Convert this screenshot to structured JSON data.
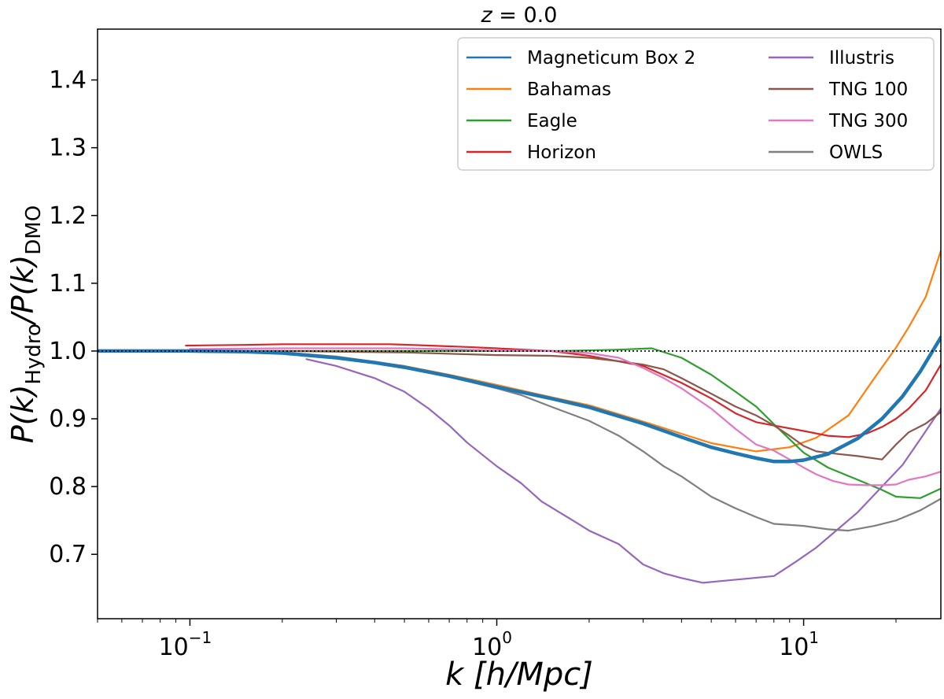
{
  "chart_data": {
    "type": "line",
    "title": "z = 0.0",
    "xlabel": "k [h/Mpc]",
    "ylabel": "P(k)_Hydro/P(k)_DMO",
    "xscale": "log",
    "xlim": [
      0.05,
      28
    ],
    "ylim": [
      0.605,
      1.475
    ],
    "grid": false,
    "legend": {
      "placement": "top-right",
      "columns": 2
    },
    "reference_line": {
      "y": 1.0,
      "style": "dotted",
      "color": "#000000"
    },
    "x_ticks": [
      {
        "value": 0.1,
        "base": "10",
        "exp": "−1"
      },
      {
        "value": 1,
        "base": "10",
        "exp": "0"
      },
      {
        "value": 10,
        "base": "10",
        "exp": "1"
      }
    ],
    "y_ticks": [
      {
        "value": 0.7,
        "label": "0.7"
      },
      {
        "value": 0.8,
        "label": "0.8"
      },
      {
        "value": 0.9,
        "label": "0.9"
      },
      {
        "value": 1.0,
        "label": "1.0"
      },
      {
        "value": 1.1,
        "label": "1.1"
      },
      {
        "value": 1.2,
        "label": "1.2"
      },
      {
        "value": 1.3,
        "label": "1.3"
      },
      {
        "value": 1.4,
        "label": "1.4"
      }
    ],
    "series": [
      {
        "name": "Magneticum Box 2",
        "color": "#1f77b4",
        "width": 4.5,
        "points": [
          [
            0.05,
            1.0
          ],
          [
            0.1,
            1.0
          ],
          [
            0.15,
            0.999
          ],
          [
            0.2,
            0.997
          ],
          [
            0.3,
            0.99
          ],
          [
            0.4,
            0.983
          ],
          [
            0.5,
            0.976
          ],
          [
            0.7,
            0.963
          ],
          [
            1.0,
            0.947
          ],
          [
            1.5,
            0.93
          ],
          [
            2.0,
            0.917
          ],
          [
            3.0,
            0.893
          ],
          [
            4.0,
            0.873
          ],
          [
            5.0,
            0.858
          ],
          [
            6.0,
            0.849
          ],
          [
            7.0,
            0.842
          ],
          [
            8.0,
            0.837
          ],
          [
            9.0,
            0.837
          ],
          [
            10.0,
            0.839
          ],
          [
            12.0,
            0.848
          ],
          [
            15.0,
            0.871
          ],
          [
            18.0,
            0.9
          ],
          [
            21.0,
            0.933
          ],
          [
            24.0,
            0.97
          ],
          [
            28.0,
            1.02
          ]
        ]
      },
      {
        "name": "Bahamas",
        "color": "#ff7f0e",
        "width": 2.2,
        "points": [
          [
            0.1,
            1.0
          ],
          [
            0.15,
            1.0
          ],
          [
            0.2,
            0.998
          ],
          [
            0.3,
            0.992
          ],
          [
            0.5,
            0.978
          ],
          [
            0.7,
            0.965
          ],
          [
            1.0,
            0.95
          ],
          [
            1.5,
            0.932
          ],
          [
            2.0,
            0.92
          ],
          [
            3.0,
            0.896
          ],
          [
            4.0,
            0.878
          ],
          [
            5.0,
            0.864
          ],
          [
            7.0,
            0.852
          ],
          [
            9.0,
            0.858
          ],
          [
            11.0,
            0.872
          ],
          [
            14.0,
            0.905
          ],
          [
            17.0,
            0.96
          ],
          [
            20.0,
            1.005
          ],
          [
            22.0,
            1.035
          ],
          [
            25.0,
            1.08
          ],
          [
            28.0,
            1.148
          ]
        ]
      },
      {
        "name": "Eagle",
        "color": "#2ca02c",
        "width": 2.2,
        "points": [
          [
            0.1,
            1.0
          ],
          [
            0.3,
            1.0
          ],
          [
            0.5,
            1.0
          ],
          [
            0.8,
            1.0
          ],
          [
            1.2,
            1.0
          ],
          [
            1.6,
            1.0
          ],
          [
            2.0,
            1.001
          ],
          [
            2.5,
            1.002
          ],
          [
            3.2,
            1.004
          ],
          [
            4.0,
            0.99
          ],
          [
            5.0,
            0.965
          ],
          [
            6.0,
            0.94
          ],
          [
            7.0,
            0.918
          ],
          [
            8.0,
            0.892
          ],
          [
            9.0,
            0.87
          ],
          [
            10.0,
            0.85
          ],
          [
            12.0,
            0.828
          ],
          [
            15.0,
            0.81
          ],
          [
            18.0,
            0.795
          ],
          [
            20.0,
            0.785
          ],
          [
            24.0,
            0.783
          ],
          [
            28.0,
            0.797
          ]
        ]
      },
      {
        "name": "Horizon",
        "color": "#d62728",
        "width": 2.2,
        "points": [
          [
            0.097,
            1.008
          ],
          [
            0.15,
            1.009
          ],
          [
            0.2,
            1.01
          ],
          [
            0.3,
            1.01
          ],
          [
            0.45,
            1.01
          ],
          [
            0.6,
            1.008
          ],
          [
            0.8,
            1.006
          ],
          [
            1.0,
            1.004
          ],
          [
            1.5,
            1.0
          ],
          [
            2.0,
            0.993
          ],
          [
            3.0,
            0.978
          ],
          [
            4.0,
            0.953
          ],
          [
            5.0,
            0.93
          ],
          [
            6.0,
            0.908
          ],
          [
            7.0,
            0.895
          ],
          [
            8.0,
            0.89
          ],
          [
            10.0,
            0.882
          ],
          [
            12.0,
            0.875
          ],
          [
            14.0,
            0.873
          ],
          [
            16.0,
            0.878
          ],
          [
            18.0,
            0.888
          ],
          [
            20.0,
            0.9
          ],
          [
            22.0,
            0.915
          ],
          [
            25.0,
            0.942
          ],
          [
            28.0,
            0.98
          ]
        ]
      },
      {
        "name": "Illustris",
        "color": "#9467bd",
        "width": 2.2,
        "points": [
          [
            0.24,
            0.988
          ],
          [
            0.3,
            0.978
          ],
          [
            0.4,
            0.96
          ],
          [
            0.5,
            0.94
          ],
          [
            0.6,
            0.915
          ],
          [
            0.7,
            0.89
          ],
          [
            0.8,
            0.865
          ],
          [
            1.0,
            0.83
          ],
          [
            1.2,
            0.805
          ],
          [
            1.4,
            0.778
          ],
          [
            1.6,
            0.762
          ],
          [
            1.8,
            0.748
          ],
          [
            2.0,
            0.735
          ],
          [
            2.5,
            0.715
          ],
          [
            3.0,
            0.685
          ],
          [
            3.5,
            0.672
          ],
          [
            4.0,
            0.665
          ],
          [
            4.7,
            0.658
          ],
          [
            5.5,
            0.661
          ],
          [
            6.5,
            0.664
          ],
          [
            8.0,
            0.668
          ],
          [
            9.5,
            0.69
          ],
          [
            11.0,
            0.71
          ],
          [
            13.0,
            0.738
          ],
          [
            15.0,
            0.762
          ],
          [
            18.0,
            0.8
          ],
          [
            21.0,
            0.832
          ],
          [
            24.0,
            0.87
          ],
          [
            28.0,
            0.915
          ]
        ]
      },
      {
        "name": "TNG 100",
        "color": "#8c564b",
        "width": 2.2,
        "points": [
          [
            0.1,
            1.0
          ],
          [
            0.2,
            1.0
          ],
          [
            0.3,
            0.999
          ],
          [
            0.5,
            0.998
          ],
          [
            0.7,
            0.996
          ],
          [
            1.0,
            0.994
          ],
          [
            1.5,
            0.993
          ],
          [
            2.0,
            0.99
          ],
          [
            2.5,
            0.985
          ],
          [
            3.0,
            0.98
          ],
          [
            3.5,
            0.973
          ],
          [
            4.0,
            0.96
          ],
          [
            5.0,
            0.937
          ],
          [
            6.0,
            0.918
          ],
          [
            7.0,
            0.905
          ],
          [
            8.0,
            0.89
          ],
          [
            9.0,
            0.875
          ],
          [
            10.0,
            0.86
          ],
          [
            11.0,
            0.852
          ],
          [
            13.0,
            0.848
          ],
          [
            15.0,
            0.845
          ],
          [
            18.0,
            0.84
          ],
          [
            20.0,
            0.862
          ],
          [
            22.0,
            0.88
          ],
          [
            25.0,
            0.893
          ],
          [
            28.0,
            0.91
          ]
        ]
      },
      {
        "name": "TNG 300",
        "color": "#e377c2",
        "width": 2.2,
        "points": [
          [
            0.1,
            1.003
          ],
          [
            0.2,
            1.004
          ],
          [
            0.3,
            1.004
          ],
          [
            0.5,
            1.004
          ],
          [
            0.8,
            1.002
          ],
          [
            1.0,
            1.001
          ],
          [
            1.5,
            1.0
          ],
          [
            2.0,
            0.997
          ],
          [
            2.5,
            0.99
          ],
          [
            3.0,
            0.975
          ],
          [
            3.5,
            0.96
          ],
          [
            4.0,
            0.945
          ],
          [
            5.0,
            0.915
          ],
          [
            6.0,
            0.885
          ],
          [
            7.0,
            0.862
          ],
          [
            8.0,
            0.853
          ],
          [
            9.0,
            0.84
          ],
          [
            10.0,
            0.828
          ],
          [
            11.0,
            0.818
          ],
          [
            12.5,
            0.808
          ],
          [
            14.0,
            0.803
          ],
          [
            16.0,
            0.802
          ],
          [
            18.0,
            0.802
          ],
          [
            20.0,
            0.803
          ],
          [
            22.0,
            0.81
          ],
          [
            25.0,
            0.815
          ],
          [
            28.0,
            0.822
          ]
        ]
      },
      {
        "name": "OWLS",
        "color": "#7f7f7f",
        "width": 2.2,
        "points": [
          [
            0.1,
            1.0
          ],
          [
            0.2,
            0.997
          ],
          [
            0.3,
            0.99
          ],
          [
            0.4,
            0.982
          ],
          [
            0.5,
            0.975
          ],
          [
            0.7,
            0.962
          ],
          [
            1.0,
            0.945
          ],
          [
            1.2,
            0.935
          ],
          [
            1.5,
            0.918
          ],
          [
            2.0,
            0.897
          ],
          [
            2.5,
            0.875
          ],
          [
            3.0,
            0.852
          ],
          [
            3.5,
            0.83
          ],
          [
            4.0,
            0.815
          ],
          [
            5.0,
            0.785
          ],
          [
            6.0,
            0.768
          ],
          [
            7.0,
            0.755
          ],
          [
            8.0,
            0.745
          ],
          [
            10.0,
            0.742
          ],
          [
            12.0,
            0.737
          ],
          [
            14.0,
            0.735
          ],
          [
            17.0,
            0.742
          ],
          [
            20.0,
            0.75
          ],
          [
            24.0,
            0.765
          ],
          [
            28.0,
            0.782
          ]
        ]
      }
    ]
  }
}
